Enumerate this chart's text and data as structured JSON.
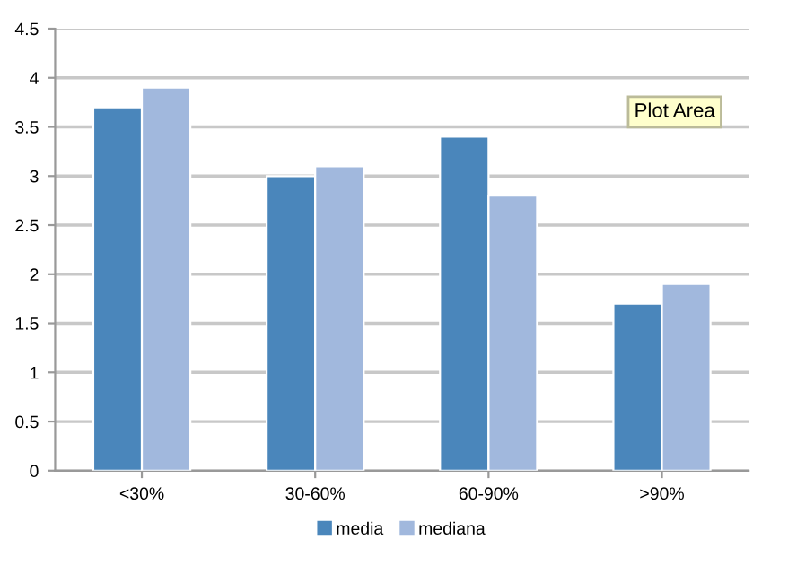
{
  "chart_data": {
    "type": "bar",
    "categories": [
      "<30%",
      "30-60%",
      "60-90%",
      ">90%"
    ],
    "series": [
      {
        "name": "media",
        "color": "#4a86bb",
        "values": [
          3.7,
          3.0,
          3.4,
          1.7
        ]
      },
      {
        "name": "mediana",
        "color": "#a1b8dd",
        "values": [
          3.9,
          3.1,
          2.8,
          1.9
        ]
      }
    ],
    "ylim": [
      0,
      4.5
    ],
    "yticks": [
      0,
      0.5,
      1,
      1.5,
      2,
      2.5,
      3,
      3.5,
      4,
      4.5
    ],
    "grid": "y",
    "legend": "bottom",
    "annotations": [
      "Plot Area"
    ]
  }
}
